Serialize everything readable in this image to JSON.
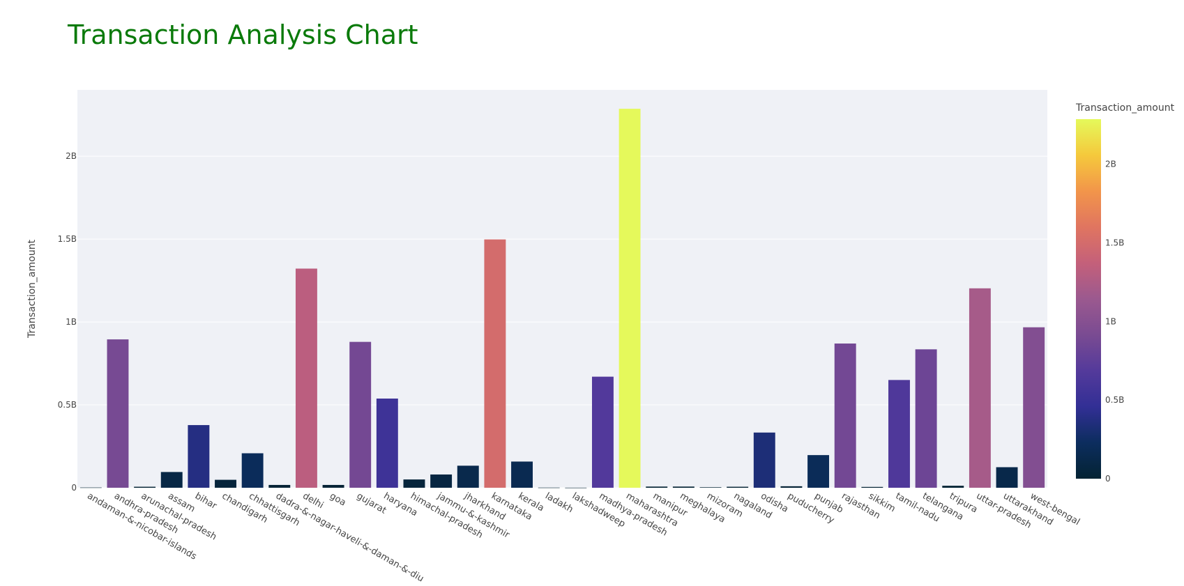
{
  "chart_data": {
    "type": "bar",
    "title": "Transaction Analysis Chart",
    "title_color": "#0a7a0a",
    "xlabel": "",
    "ylabel": "Transaction_amount",
    "ylim": [
      0,
      2400000000
    ],
    "y_ticks": [
      0,
      500000000,
      1000000000,
      1500000000,
      2000000000
    ],
    "y_tick_labels": [
      "0",
      "0.5B",
      "1B",
      "1.5B",
      "2B"
    ],
    "grid": true,
    "plot_background": "#eff1f6",
    "categories": [
      "andaman-&-nicobar-islands",
      "andhra-pradesh",
      "arunachal-pradesh",
      "assam",
      "bihar",
      "chandigarh",
      "chhattisgarh",
      "dadra-&-nagar-haveli-&-daman-&-diu",
      "delhi",
      "goa",
      "gujarat",
      "haryana",
      "himachal-pradesh",
      "jammu-&-kashmir",
      "jharkhand",
      "karnataka",
      "kerala",
      "ladakh",
      "lakshadweep",
      "madhya-pradesh",
      "maharashtra",
      "manipur",
      "meghalaya",
      "mizoram",
      "nagaland",
      "odisha",
      "puducherry",
      "punjab",
      "rajasthan",
      "sikkim",
      "tamil-nadu",
      "telangana",
      "tripura",
      "uttar-pradesh",
      "uttarakhand",
      "west-bengal"
    ],
    "values": [
      1500000,
      895000000,
      6000000,
      95000000,
      378000000,
      48000000,
      208000000,
      17000000,
      1322000000,
      17000000,
      880000000,
      538000000,
      50000000,
      80000000,
      133000000,
      1498000000,
      158000000,
      1000000,
      500000,
      670000000,
      2286000000,
      7000000,
      7000000,
      3000000,
      6000000,
      333000000,
      9000000,
      197000000,
      870000000,
      5000000,
      650000000,
      835000000,
      12000000,
      1203000000,
      124000000,
      968000000
    ],
    "colorbar": {
      "title": "Transaction_amount",
      "range": [
        0,
        2286000000
      ],
      "ticks": [
        0,
        500000000,
        1000000000,
        1500000000,
        2000000000
      ],
      "tick_labels": [
        "0",
        "0.5B",
        "1B",
        "1.5B",
        "2B"
      ],
      "colorscale": [
        "#0d0887",
        "#46039f",
        "#7201a8",
        "#9c179e",
        "#bd3786",
        "#d8576b",
        "#ed7953",
        "#fb9f3a",
        "#fdca26",
        "#f0f921"
      ],
      "colorscale_plasma_like": [
        "#042333",
        "#0c2d5e",
        "#322f95",
        "#543a9b",
        "#7a4b92",
        "#9b598f",
        "#c4607a",
        "#e07560",
        "#f2954a",
        "#f5c93c",
        "#e5f95b"
      ],
      "placement": "right"
    }
  }
}
